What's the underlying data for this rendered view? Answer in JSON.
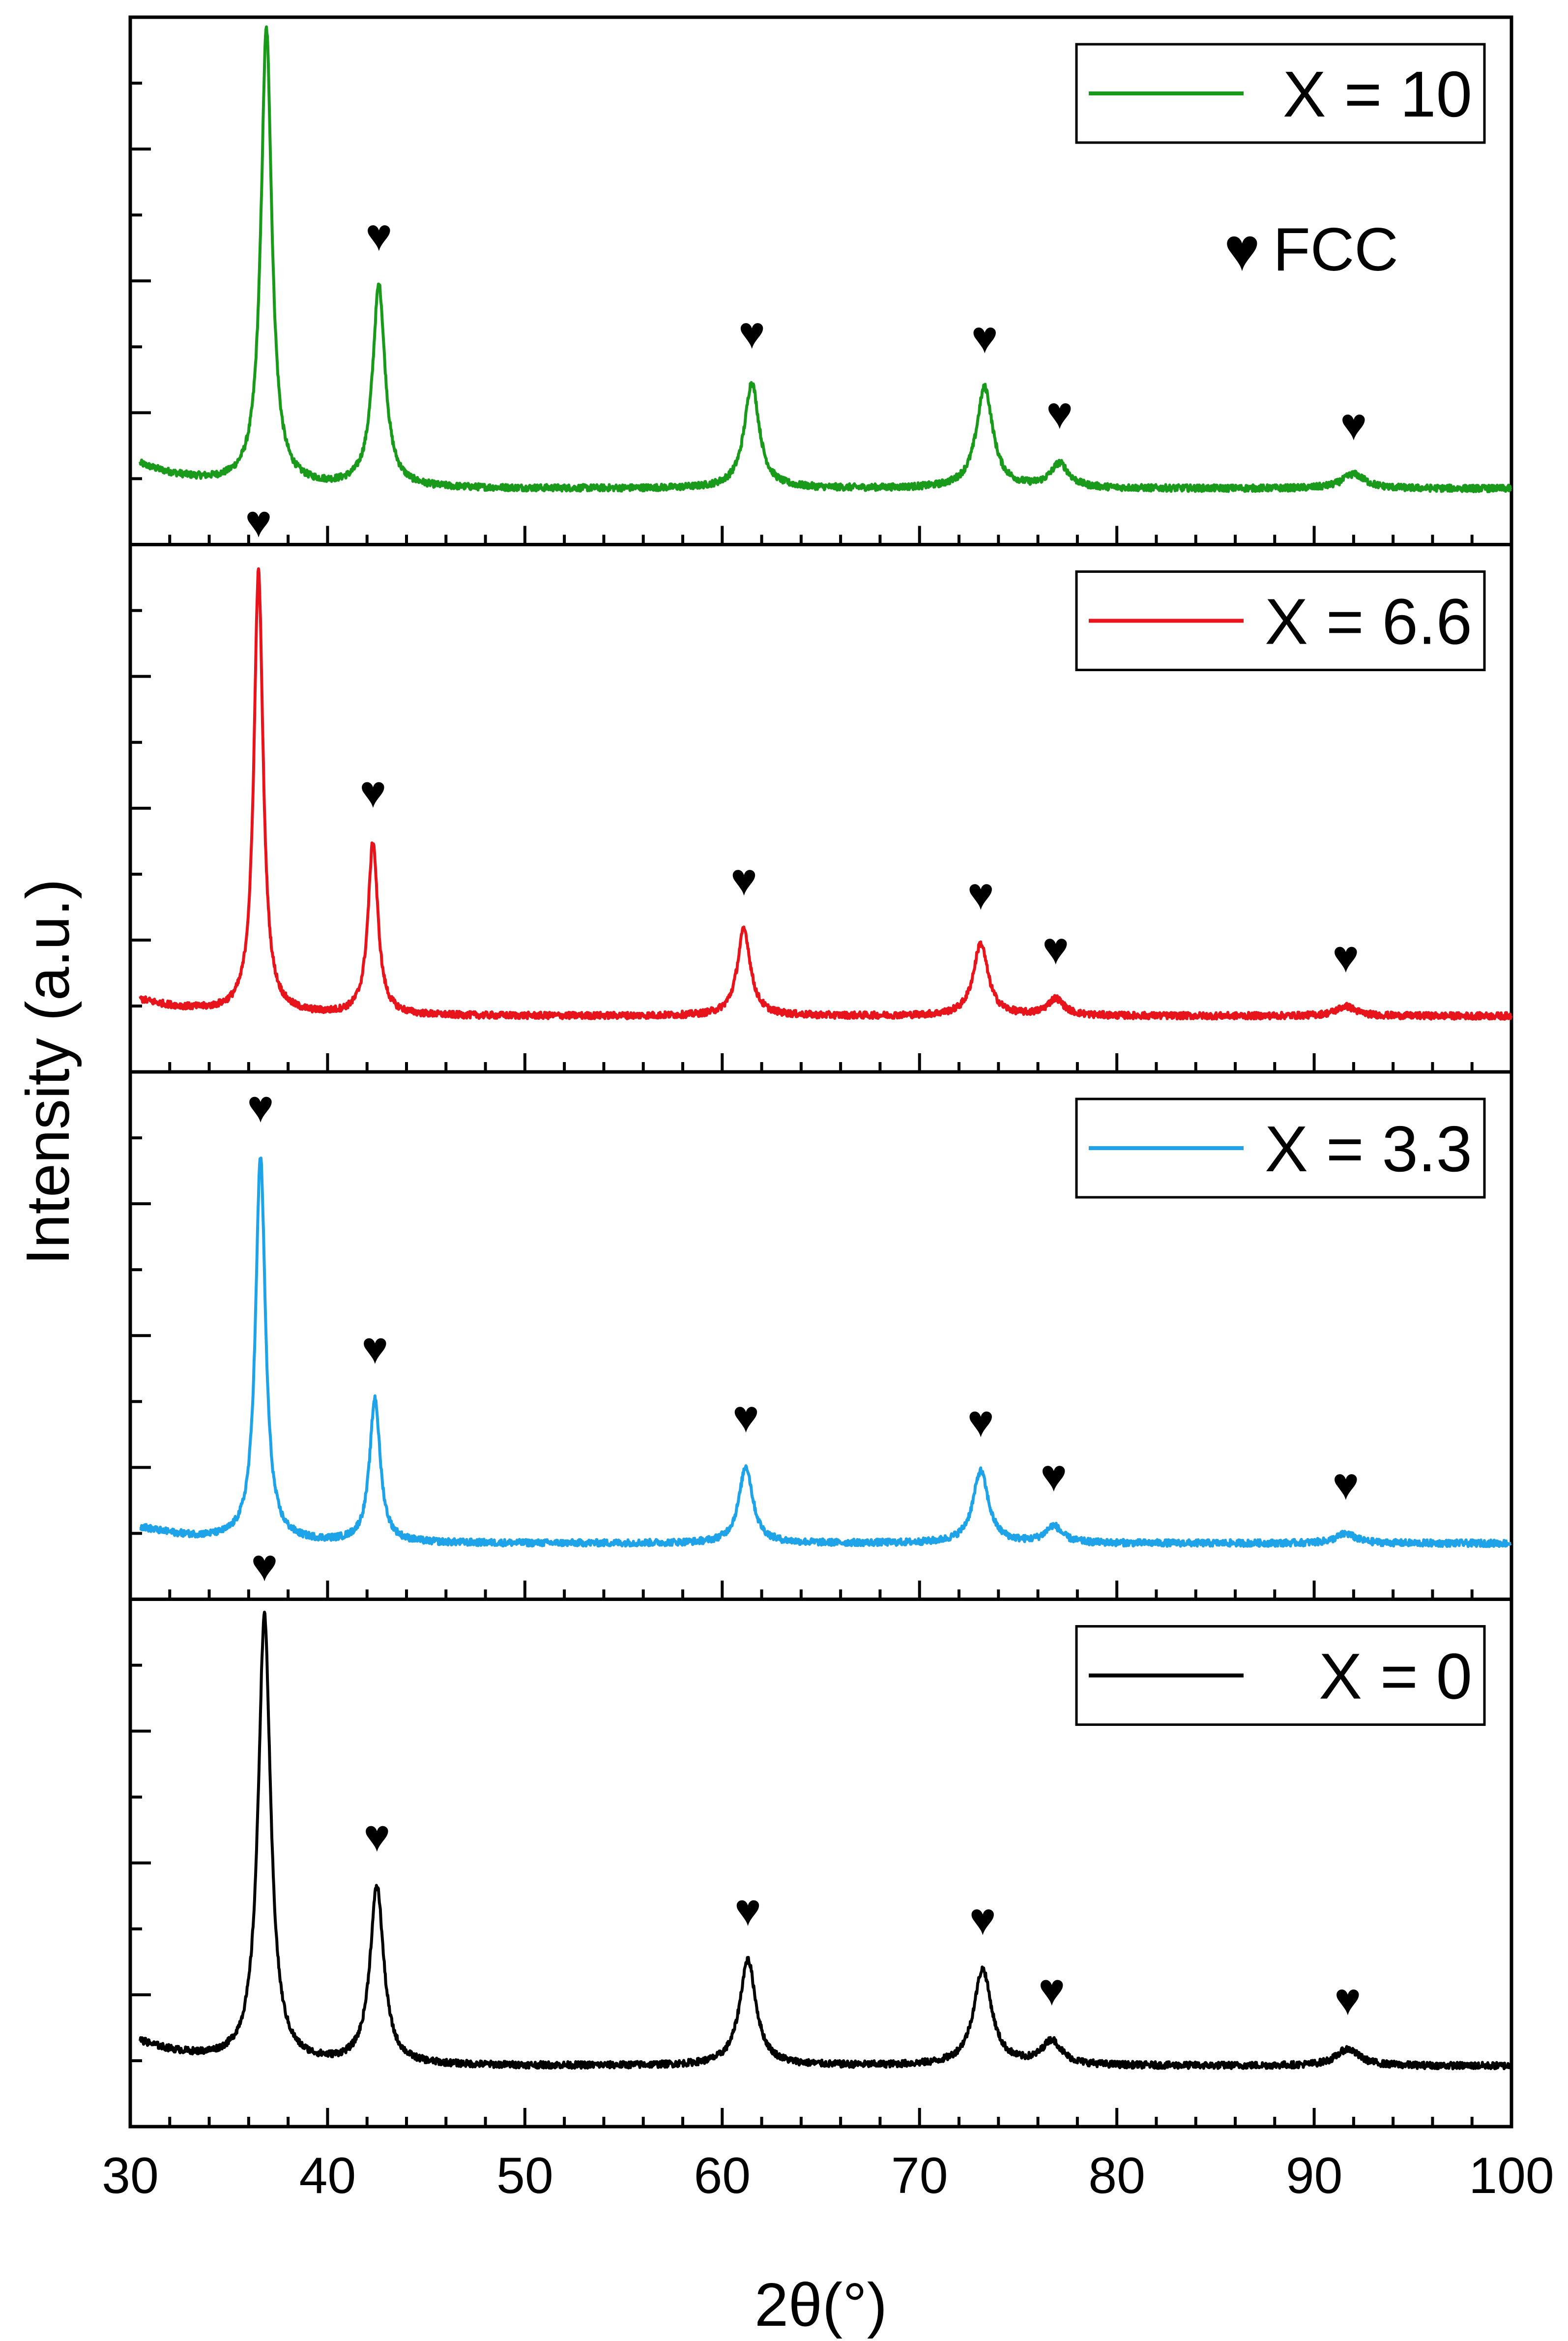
{
  "chart_data": {
    "type": "line",
    "xlabel": "2θ(°)",
    "ylabel": "Intensity (a.u.)",
    "xlim": [
      30,
      100
    ],
    "xticks": [
      30,
      40,
      50,
      60,
      70,
      80,
      90,
      100
    ],
    "xtick_labels": [
      "30",
      "40",
      "50",
      "60",
      "70",
      "80",
      "90",
      "100"
    ],
    "ylim": [
      0,
      1
    ],
    "phase_legend": {
      "symbol": "♥",
      "label": "FCC"
    },
    "peak_marker_symbol": "♥",
    "panels": [
      {
        "name": "X = 10",
        "label": "X = 10",
        "color": "#1a9a1a",
        "baseline": 0.06,
        "start_level": 0.12,
        "peaks": [
          {
            "two_theta": 36.9,
            "height": 0.95,
            "width": 0.33
          },
          {
            "two_theta": 42.6,
            "height": 0.42,
            "width": 0.38
          },
          {
            "two_theta": 61.5,
            "height": 0.22,
            "width": 0.45
          },
          {
            "two_theta": 73.3,
            "height": 0.21,
            "width": 0.5
          },
          {
            "two_theta": 77.1,
            "height": 0.05,
            "width": 0.55
          },
          {
            "two_theta": 92.0,
            "height": 0.03,
            "width": 0.7
          }
        ]
      },
      {
        "name": "X = 6.6",
        "label": "X = 6.6",
        "color": "#e8141c",
        "baseline": 0.06,
        "start_level": 0.1,
        "peaks": [
          {
            "two_theta": 36.5,
            "height": 0.92,
            "width": 0.28
          },
          {
            "two_theta": 42.3,
            "height": 0.36,
            "width": 0.3
          },
          {
            "two_theta": 61.1,
            "height": 0.18,
            "width": 0.4
          },
          {
            "two_theta": 73.1,
            "height": 0.15,
            "width": 0.45
          },
          {
            "two_theta": 76.9,
            "height": 0.035,
            "width": 0.5
          },
          {
            "two_theta": 91.6,
            "height": 0.02,
            "width": 0.6
          }
        ]
      },
      {
        "name": "X = 3.3",
        "label": "X = 3.3",
        "color": "#1fa3e8",
        "baseline": 0.06,
        "start_level": 0.1,
        "peaks": [
          {
            "two_theta": 36.6,
            "height": 0.8,
            "width": 0.3
          },
          {
            "two_theta": 42.4,
            "height": 0.3,
            "width": 0.32
          },
          {
            "two_theta": 61.2,
            "height": 0.16,
            "width": 0.42
          },
          {
            "two_theta": 73.1,
            "height": 0.15,
            "width": 0.47
          },
          {
            "two_theta": 76.8,
            "height": 0.035,
            "width": 0.5
          },
          {
            "two_theta": 91.6,
            "height": 0.02,
            "width": 0.6
          }
        ]
      },
      {
        "name": "X = 0",
        "label": "X = 0",
        "color": "#000000",
        "baseline": 0.07,
        "start_level": 0.13,
        "peaks": [
          {
            "two_theta": 36.8,
            "height": 0.93,
            "width": 0.38
          },
          {
            "two_theta": 42.5,
            "height": 0.37,
            "width": 0.42
          },
          {
            "two_theta": 61.3,
            "height": 0.22,
            "width": 0.5
          },
          {
            "two_theta": 73.2,
            "height": 0.2,
            "width": 0.55
          },
          {
            "two_theta": 76.7,
            "height": 0.05,
            "width": 0.6
          },
          {
            "two_theta": 91.7,
            "height": 0.035,
            "width": 0.7
          }
        ]
      }
    ]
  }
}
